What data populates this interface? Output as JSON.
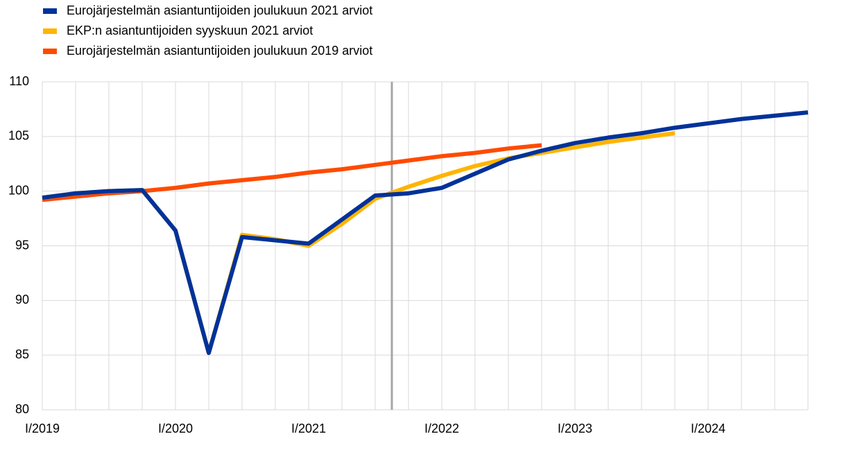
{
  "chart_data": {
    "type": "line",
    "categories": [
      "I/2019",
      null,
      null,
      null,
      "I/2020",
      null,
      null,
      null,
      "I/2021",
      null,
      null,
      null,
      "I/2022",
      null,
      null,
      null,
      "I/2023",
      null,
      null,
      null,
      "I/2024",
      null,
      null,
      null
    ],
    "series": [
      {
        "name": "Eurojärjestelmän asiantuntijoiden joulukuun 2021 arviot",
        "color": "#003299",
        "values": [
          99.4,
          99.8,
          100.0,
          100.1,
          96.4,
          85.2,
          95.8,
          95.5,
          95.2,
          97.4,
          99.6,
          99.8,
          100.3,
          101.6,
          102.9,
          103.7,
          104.4,
          104.9,
          105.3,
          105.8,
          106.2,
          106.6,
          106.9,
          107.2
        ]
      },
      {
        "name": "EKP:n asiantuntijoiden syyskuun 2021 arviot",
        "color": "#ffb400",
        "values": [
          99.4,
          99.8,
          100.0,
          100.1,
          96.4,
          85.2,
          96.0,
          95.6,
          95.0,
          97.0,
          99.3,
          100.4,
          101.4,
          102.3,
          103.0,
          103.5,
          104.0,
          104.5,
          104.9,
          105.3,
          null,
          null,
          null,
          null
        ]
      },
      {
        "name": "Eurojärjestelmän asiantuntijoiden joulukuun 2019 arviot",
        "color": "#ff4b00",
        "values": [
          99.2,
          99.5,
          99.8,
          100.0,
          100.3,
          100.7,
          101.0,
          101.3,
          101.7,
          102.0,
          102.4,
          102.8,
          103.2,
          103.5,
          103.9,
          104.2,
          null,
          null,
          null,
          null,
          null,
          null,
          null,
          null
        ]
      }
    ],
    "ylim": [
      80,
      110
    ],
    "yticks": [
      80,
      85,
      90,
      95,
      100,
      105,
      110
    ],
    "grid": true,
    "vertical_line": {
      "x": 10.5,
      "color": "#a6a6a6"
    }
  }
}
